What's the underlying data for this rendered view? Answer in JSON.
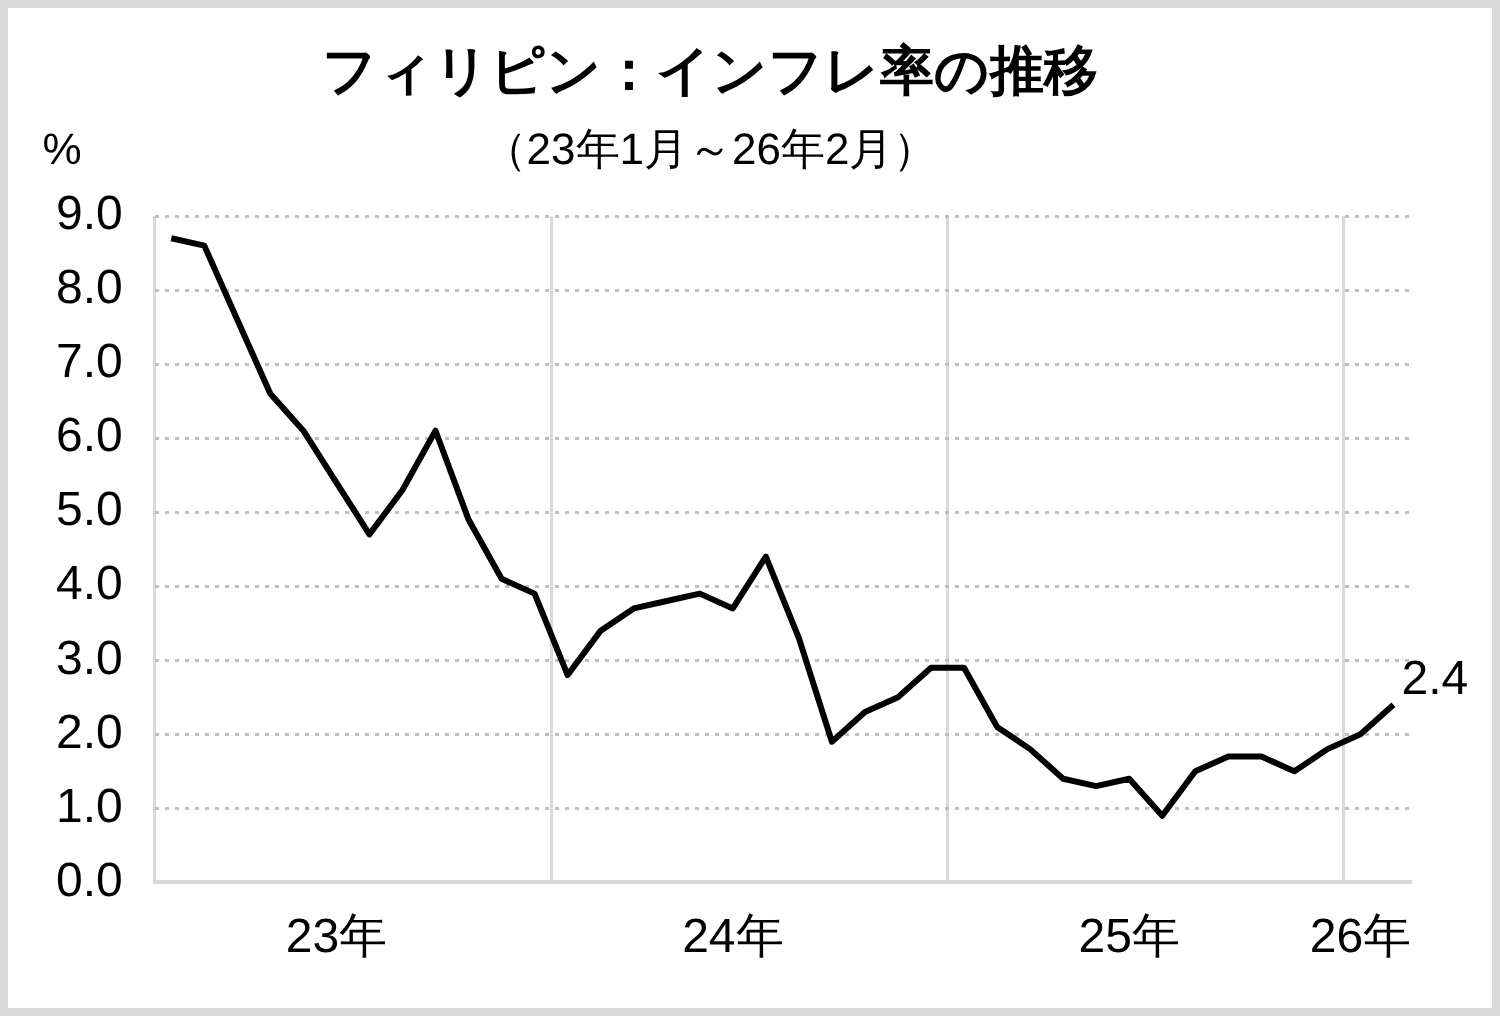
{
  "chart_data": {
    "type": "line",
    "title": "フィリピン：インフレ率の推移",
    "subtitle": "（23年1月～26年2月）",
    "ylabel": "%",
    "categories": [
      null,
      null,
      null,
      null,
      null,
      "23年",
      null,
      null,
      null,
      null,
      null,
      null,
      null,
      null,
      null,
      null,
      null,
      "24年",
      null,
      null,
      null,
      null,
      null,
      null,
      null,
      null,
      null,
      null,
      null,
      "25年",
      null,
      null,
      null,
      null,
      null,
      null,
      "26年",
      null
    ],
    "series": [
      {
        "color": "#000000",
        "values": [
          8.7,
          8.6,
          7.6,
          6.6,
          6.1,
          5.4,
          4.7,
          5.3,
          6.1,
          4.9,
          4.1,
          3.9,
          2.8,
          3.4,
          3.7,
          3.8,
          3.9,
          3.7,
          4.4,
          3.3,
          1.9,
          2.3,
          2.5,
          2.9,
          2.9,
          2.1,
          1.8,
          1.4,
          1.3,
          1.4,
          0.9,
          1.5,
          1.7,
          1.7,
          1.5,
          1.8,
          2.0,
          2.4
        ],
        "value_labels": [
          null,
          null,
          null,
          null,
          null,
          null,
          null,
          null,
          null,
          null,
          null,
          null,
          null,
          null,
          null,
          null,
          null,
          null,
          null,
          null,
          null,
          null,
          null,
          null,
          null,
          null,
          null,
          null,
          null,
          null,
          null,
          null,
          null,
          null,
          null,
          null,
          null,
          "2.4"
        ]
      }
    ],
    "ylim": [
      0,
      9
    ],
    "yticks": [
      {
        "value": 0,
        "label": "0.0"
      },
      {
        "value": 1,
        "label": "1.0"
      },
      {
        "value": 2,
        "label": "2.0"
      },
      {
        "value": 3,
        "label": "3.0"
      },
      {
        "value": 4,
        "label": "4.0"
      },
      {
        "value": 5,
        "label": "5.0"
      },
      {
        "value": 6,
        "label": "6.0"
      },
      {
        "value": 7,
        "label": "7.0"
      },
      {
        "value": 8,
        "label": "8.0"
      },
      {
        "value": 9,
        "label": "9.0"
      }
    ],
    "grid": true,
    "legend": false,
    "marker": "none",
    "line_style": "solid"
  }
}
